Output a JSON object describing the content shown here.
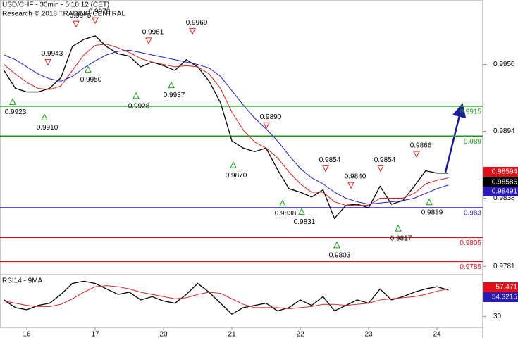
{
  "chart_data": [
    {
      "type": "line",
      "title": "USD/CHF - 30min - 5:10:12 (CET)",
      "subtitle": "Research © 2018 TRADING CENTRAL",
      "categories": [
        null,
        null,
        "16",
        null,
        null,
        null,
        null,
        null,
        "17",
        null,
        null,
        null,
        null,
        null,
        "20",
        null,
        null,
        null,
        null,
        null,
        "21",
        null,
        null,
        null,
        null,
        null,
        "22",
        null,
        null,
        null,
        null,
        null,
        "23",
        null,
        null,
        null,
        null,
        null,
        "24",
        null
      ],
      "series": [
        {
          "color": "#000000",
          "values": [
            0.9945,
            0.993,
            0.9927,
            0.9927,
            0.993,
            0.9939,
            0.9965,
            0.9971,
            0.9974,
            0.9965,
            0.9959,
            0.9957,
            0.9948,
            0.9952,
            0.9949,
            0.9945,
            0.9954,
            0.9948,
            0.9936,
            0.9918,
            0.9886,
            0.988,
            0.9877,
            0.988,
            0.9862,
            0.9846,
            0.9843,
            0.9839,
            0.9845,
            0.9821,
            0.9832,
            0.9833,
            0.983,
            0.9848,
            0.9833,
            0.9836,
            0.9848,
            0.9861,
            0.9859,
            0.9859
          ]
        },
        {
          "color": "#d62020",
          "values": [
            0.995,
            0.9942,
            0.9935,
            0.993,
            0.9929,
            0.9932,
            0.9945,
            0.9958,
            0.9966,
            0.9967,
            0.9964,
            0.996,
            0.9955,
            0.9952,
            0.995,
            0.9948,
            0.9949,
            0.9948,
            0.9942,
            0.993,
            0.991,
            0.9895,
            0.9885,
            0.988,
            0.9872,
            0.986,
            0.985,
            0.9843,
            0.9843,
            0.9835,
            0.9832,
            0.9832,
            0.9832,
            0.9838,
            0.9838,
            0.9838,
            0.9842,
            0.985,
            0.9853,
            0.9855
          ]
        },
        {
          "color": "#2020c8",
          "values": [
            0.9958,
            0.9954,
            0.9948,
            0.9942,
            0.9938,
            0.9936,
            0.994,
            0.9947,
            0.9953,
            0.9958,
            0.9961,
            0.9962,
            0.996,
            0.9958,
            0.9956,
            0.9954,
            0.9952,
            0.995,
            0.9947,
            0.994,
            0.9928,
            0.9916,
            0.9905,
            0.9896,
            0.9886,
            0.9874,
            0.9863,
            0.9855,
            0.985,
            0.9843,
            0.9838,
            0.9835,
            0.9833,
            0.9834,
            0.9835,
            0.9836,
            0.9838,
            0.9842,
            0.9846,
            0.9849
          ]
        }
      ],
      "ylim": [
        0.9774,
        1.0004
      ],
      "yticks": [
        {
          "value": 0.995,
          "label": "0.9950"
        },
        0.9894,
        0.9838,
        0.9781
      ],
      "levels": [
        {
          "value": 0.9915,
          "color": "#1a9a1a"
        },
        {
          "value": 0.989,
          "color": "#1a9a1a"
        },
        {
          "value": 0.983,
          "color": "#2a1ab8"
        },
        {
          "value": 0.9805,
          "color": "#e0101a"
        },
        {
          "value": 0.9785,
          "color": "#e0101a"
        }
      ],
      "annotations": [
        {
          "value": 0.9923,
          "kind": "low"
        },
        {
          "value": 0.991,
          "label": "0.9910",
          "kind": "low"
        },
        {
          "value": 0.9943,
          "kind": "high"
        },
        {
          "value": 0.9975,
          "kind": "high"
        },
        {
          "value": 0.9978,
          "kind": "high"
        },
        {
          "value": 0.995,
          "label": "0.9950",
          "kind": "low"
        },
        {
          "value": 0.9928,
          "kind": "low"
        },
        {
          "value": 0.9961,
          "kind": "high"
        },
        {
          "value": 0.9937,
          "kind": "low"
        },
        {
          "value": 0.9969,
          "kind": "high"
        },
        {
          "value": 0.987,
          "label": "0.9870",
          "kind": "low"
        },
        {
          "value": 0.989,
          "label": "0.9890",
          "kind": "high"
        },
        {
          "value": 0.9838,
          "kind": "low"
        },
        {
          "value": 0.9831,
          "kind": "low"
        },
        {
          "value": 0.9854,
          "kind": "high"
        },
        {
          "value": 0.9803,
          "kind": "low"
        },
        {
          "value": 0.984,
          "label": "0.9840",
          "kind": "high"
        },
        {
          "value": 0.9854,
          "kind": "high"
        },
        {
          "value": 0.9817,
          "kind": "low"
        },
        {
          "value": 0.9866,
          "kind": "high"
        },
        {
          "value": 0.9839,
          "kind": "low"
        }
      ],
      "badges": [
        {
          "value": 0.98594,
          "color": "#e0101a"
        },
        {
          "value": 0.98586,
          "color": "#000000"
        },
        {
          "value": 0.98491,
          "color": "#2a1ab8"
        }
      ]
    },
    {
      "type": "line",
      "title": "RSI14 - 9MA",
      "series": [
        {
          "color": "#000000",
          "values": [
            45,
            38,
            36,
            40,
            42,
            50,
            60,
            62,
            60,
            55,
            50,
            52,
            45,
            48,
            44,
            42,
            50,
            60,
            52,
            42,
            32,
            38,
            40,
            42,
            35,
            38,
            45,
            40,
            48,
            35,
            40,
            45,
            42,
            55,
            45,
            48,
            52,
            55,
            57,
            54
          ]
        },
        {
          "color": "#d62020",
          "values": [
            44,
            42,
            40,
            39,
            39,
            41,
            46,
            52,
            57,
            58,
            57,
            55,
            52,
            50,
            48,
            46,
            47,
            50,
            52,
            51,
            46,
            41,
            38,
            38,
            38,
            37,
            38,
            39,
            41,
            41,
            40,
            41,
            42,
            45,
            46,
            47,
            48,
            50,
            53,
            55
          ]
        }
      ],
      "ylim": [
        20,
        68
      ],
      "yticks": [
        30
      ],
      "badges": [
        {
          "value": 57.471,
          "color": "#e0101a"
        },
        {
          "value": 54.3215,
          "color": "#2a1ab8"
        }
      ]
    }
  ]
}
